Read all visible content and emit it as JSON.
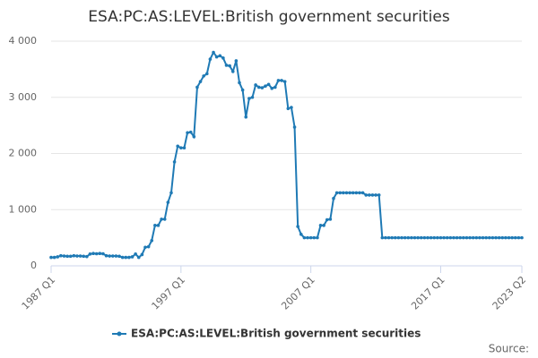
{
  "chart_data": {
    "type": "line",
    "title": "ESA:PC:AS:LEVEL:British government securities",
    "source": "Source:",
    "categories": [
      "1987 Q1",
      null,
      null,
      null,
      null,
      null,
      null,
      null,
      null,
      null,
      null,
      null,
      null,
      null,
      null,
      null,
      null,
      null,
      null,
      null,
      null,
      null,
      null,
      null,
      null,
      null,
      null,
      null,
      null,
      null,
      null,
      null,
      null,
      null,
      null,
      null,
      null,
      null,
      null,
      null,
      "1997 Q1",
      null,
      null,
      null,
      null,
      null,
      null,
      null,
      null,
      null,
      null,
      null,
      null,
      null,
      null,
      null,
      null,
      null,
      null,
      null,
      null,
      null,
      null,
      null,
      null,
      null,
      null,
      null,
      null,
      null,
      null,
      null,
      null,
      null,
      null,
      null,
      null,
      null,
      null,
      null,
      "2007 Q1",
      null,
      null,
      null,
      null,
      null,
      null,
      null,
      null,
      null,
      null,
      null,
      null,
      null,
      null,
      null,
      null,
      null,
      null,
      null,
      null,
      null,
      null,
      null,
      null,
      null,
      null,
      null,
      null,
      null,
      null,
      null,
      null,
      null,
      null,
      null,
      null,
      null,
      null,
      null,
      "2017 Q1",
      null,
      null,
      null,
      null,
      null,
      null,
      null,
      null,
      null,
      null,
      null,
      null,
      null,
      null,
      null,
      null,
      null,
      null,
      null,
      null,
      null,
      null,
      null,
      null,
      "2023 Q2"
    ],
    "series": [
      {
        "name": "ESA:PC:AS:LEVEL:British government securities",
        "color": "#1f7ab5",
        "values": [
          150,
          150,
          160,
          180,
          175,
          170,
          170,
          180,
          175,
          175,
          170,
          165,
          210,
          220,
          215,
          220,
          215,
          180,
          175,
          175,
          175,
          170,
          150,
          150,
          150,
          160,
          210,
          150,
          200,
          330,
          340,
          450,
          720,
          720,
          830,
          830,
          1130,
          1300,
          1850,
          2130,
          2100,
          2100,
          2370,
          2380,
          2300,
          3180,
          3280,
          3380,
          3420,
          3680,
          3800,
          3720,
          3740,
          3700,
          3570,
          3560,
          3460,
          3650,
          3260,
          3130,
          2650,
          2980,
          3000,
          3220,
          3180,
          3170,
          3200,
          3230,
          3160,
          3180,
          3300,
          3300,
          3280,
          2800,
          2820,
          2470,
          700,
          560,
          500,
          500,
          500,
          500,
          500,
          720,
          720,
          820,
          830,
          1200,
          1300,
          1300,
          1300,
          1300,
          1300,
          1300,
          1300,
          1300,
          1300,
          1260,
          1260,
          1260,
          1260,
          1260,
          500,
          500,
          500,
          500,
          500,
          500,
          500,
          500,
          500,
          500,
          500,
          500,
          500,
          500,
          500,
          500,
          500,
          500,
          500,
          500,
          500,
          500,
          500,
          500,
          500,
          500,
          500,
          500,
          500,
          500,
          500,
          500,
          500,
          500,
          500,
          500,
          500,
          500,
          500,
          500,
          500,
          500,
          500,
          500
        ]
      }
    ],
    "ylim": [
      0,
      4000
    ],
    "yticks": [
      0,
      {
        "value": 1000,
        "label": "1 000"
      },
      {
        "value": 2000,
        "label": "2 000"
      },
      {
        "value": 3000,
        "label": "3 000"
      },
      {
        "value": 4000,
        "label": "4 000"
      }
    ],
    "grid": true
  }
}
